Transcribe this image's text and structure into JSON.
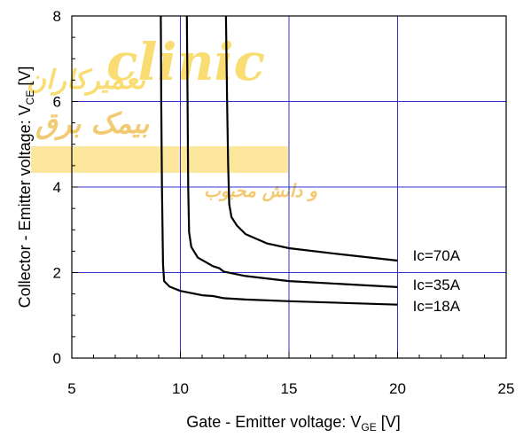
{
  "chart_data": {
    "type": "line",
    "xlabel": {
      "main": "Gate - Emitter voltage: V",
      "sub": "GE",
      "unit": " [V]"
    },
    "ylabel": {
      "main": "Collector - Emitter voltage: V",
      "sub": "CE",
      "unit": " [V]"
    },
    "xlim": [
      5,
      25
    ],
    "ylim": [
      0,
      8
    ],
    "xticks": [
      5,
      10,
      15,
      20,
      25
    ],
    "yticks": [
      0,
      2,
      4,
      6,
      8
    ],
    "grid": true,
    "grid_color": "#3333cc",
    "line_color": "#000000",
    "series": [
      {
        "name": "Ic=70A",
        "points": [
          [
            12.1,
            8.0
          ],
          [
            12.15,
            6.0
          ],
          [
            12.2,
            4.5
          ],
          [
            12.25,
            3.6
          ],
          [
            12.35,
            3.3
          ],
          [
            12.6,
            3.1
          ],
          [
            13.0,
            2.9
          ],
          [
            14.0,
            2.68
          ],
          [
            15.0,
            2.57
          ],
          [
            17.0,
            2.45
          ],
          [
            20.0,
            2.28
          ]
        ]
      },
      {
        "name": "Ic=35A",
        "points": [
          [
            10.3,
            8.0
          ],
          [
            10.33,
            6.0
          ],
          [
            10.36,
            4.0
          ],
          [
            10.4,
            2.95
          ],
          [
            10.5,
            2.6
          ],
          [
            10.8,
            2.35
          ],
          [
            11.5,
            2.15
          ],
          [
            11.8,
            2.1
          ],
          [
            12.0,
            2.02
          ],
          [
            13.0,
            1.92
          ],
          [
            15.0,
            1.8
          ],
          [
            17.5,
            1.73
          ],
          [
            20.0,
            1.66
          ]
        ]
      },
      {
        "name": "Ic=18A",
        "points": [
          [
            9.1,
            8.0
          ],
          [
            9.12,
            6.0
          ],
          [
            9.15,
            4.0
          ],
          [
            9.2,
            2.2
          ],
          [
            9.25,
            1.8
          ],
          [
            9.5,
            1.67
          ],
          [
            10.0,
            1.57
          ],
          [
            11.0,
            1.47
          ],
          [
            11.5,
            1.45
          ],
          [
            12.0,
            1.4
          ],
          [
            13.0,
            1.37
          ],
          [
            15.0,
            1.33
          ],
          [
            20.0,
            1.25
          ]
        ]
      }
    ],
    "curve_labels": [
      {
        "text": "Ic=70A",
        "x": 20.7,
        "y": 2.4
      },
      {
        "text": "Ic=35A",
        "x": 20.7,
        "y": 1.72
      },
      {
        "text": "Ic=18A",
        "x": 20.7,
        "y": 1.22
      }
    ]
  },
  "watermark": {
    "latin": "clinic",
    "persian_1": "تعمیرکاران",
    "persian_2": "بیمک برق",
    "persian_3": "و دانش محبوب",
    "colors": [
      "#f5c000",
      "#e8a000"
    ]
  }
}
